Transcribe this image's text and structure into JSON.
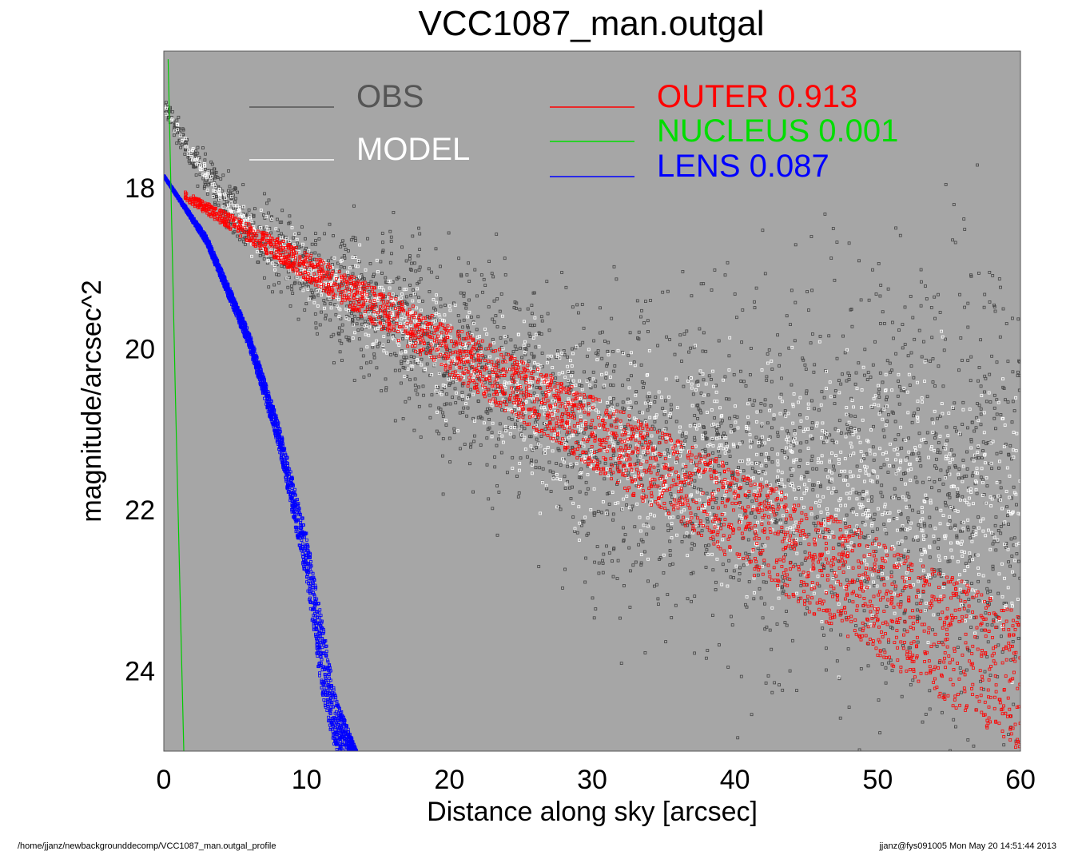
{
  "chart_data": {
    "type": "scatter",
    "title": "VCC1087_man.outgal",
    "xlabel": "Distance along sky [arcsec]",
    "ylabel": "magnitude/arcsec^2",
    "xlim": [
      0,
      60
    ],
    "ylim": [
      25,
      16.3
    ],
    "y_inverted": true,
    "x_ticks": [
      0,
      10,
      20,
      30,
      40,
      50,
      60
    ],
    "y_ticks": [
      18,
      20,
      22,
      24
    ],
    "grid": false,
    "background": "#a6a6a6",
    "legend": {
      "placement": "top",
      "entries": [
        {
          "label": "OBS",
          "color": "#555555"
        },
        {
          "label": "MODEL",
          "color": "#ffffff"
        },
        {
          "label": "OUTER  0.913",
          "color": "#ff0000"
        },
        {
          "label": "NUCLEUS  0.001",
          "color": "#00dd00"
        },
        {
          "label": "LENS  0.087",
          "color": "#0000ff"
        }
      ]
    },
    "series": [
      {
        "name": "OBS",
        "color": "#444444",
        "x": [
          0,
          2,
          5,
          8,
          10,
          15,
          20,
          25,
          30,
          35,
          40,
          45,
          50,
          55,
          60
        ],
        "y": [
          17.0,
          17.6,
          18.3,
          18.8,
          19.0,
          19.5,
          20.1,
          20.6,
          21.1,
          21.4,
          21.6,
          21.7,
          21.8,
          21.9,
          22.0
        ]
      },
      {
        "name": "MODEL",
        "color": "#ffffff",
        "x": [
          0,
          2,
          5,
          8,
          10,
          15,
          20,
          25,
          30,
          35,
          40,
          45,
          50,
          55,
          60
        ],
        "y": [
          17.0,
          17.6,
          18.3,
          18.8,
          19.0,
          19.5,
          20.1,
          20.6,
          21.1,
          21.4,
          21.6,
          21.7,
          21.8,
          21.9,
          22.0
        ]
      },
      {
        "name": "OUTER",
        "color": "#ff0000",
        "x": [
          1.5,
          60
        ],
        "y_upper": [
          18.05,
          23.25
        ],
        "y_lower": [
          18.15,
          25.0
        ]
      },
      {
        "name": "NUCLEUS",
        "color": "#00cc00",
        "x": [
          0.3,
          0.5,
          0.8,
          1.2,
          1.4
        ],
        "y": [
          16.4,
          18.0,
          20.5,
          23.5,
          25.0
        ]
      },
      {
        "name": "LENS",
        "color": "#0000ff",
        "x": [
          0,
          3,
          6,
          8,
          10,
          11,
          12,
          13.5
        ],
        "y_upper": [
          17.85,
          18.6,
          19.8,
          20.9,
          22.3,
          23.3,
          24.3,
          25.0
        ],
        "y_lower": [
          17.85,
          18.7,
          20.0,
          21.2,
          22.9,
          24.2,
          25.0,
          25.0
        ]
      }
    ]
  },
  "footer": {
    "path": "/home/jjanz/newbackgrounddecomp/VCC1087_man.outgal_profile",
    "stamp": "jjanz@fys091005  Mon May 20 14:51:44 2013"
  }
}
